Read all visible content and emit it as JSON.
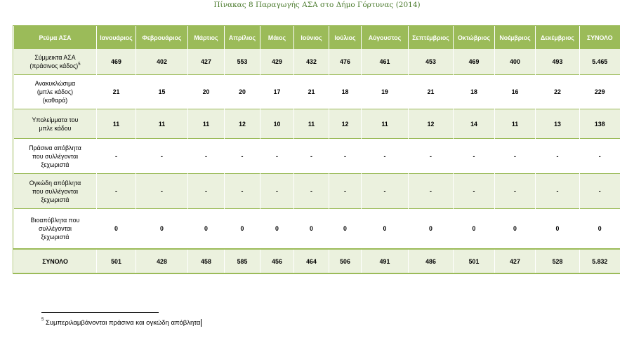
{
  "title": "Πίνακας 8 Παραγωγής ΑΣΑ στο Δήμο Γόρτυνας (2014)",
  "columns": [
    "Ρεύμα ΑΣΑ",
    "Ιανουάριος",
    "Φεβρουάριος",
    "Μάρτιος",
    "Απρίλιος",
    "Μάιος",
    "Ιούνιος",
    "Ιούλιος",
    "Αύγουστος",
    "Σεπτέμβριος",
    "Οκτώβριος",
    "Νοέμβριος",
    "Δεκέμβριος",
    "ΣΥΝΟΛΟ"
  ],
  "rows": [
    {
      "label_lines": [
        "Σύμμεικτα ΑΣΑ",
        "(πράσινος κάδος)"
      ],
      "footnote_ref": "5",
      "values": [
        "469",
        "402",
        "427",
        "553",
        "429",
        "432",
        "476",
        "461",
        "453",
        "469",
        "400",
        "493",
        "5.465"
      ]
    },
    {
      "label_lines": [
        "Ανακυκλώσιμα",
        "(μπλε κάδος)",
        "(καθαρά)"
      ],
      "footnote_ref": "",
      "values": [
        "21",
        "15",
        "20",
        "20",
        "17",
        "21",
        "18",
        "19",
        "21",
        "18",
        "16",
        "22",
        "229"
      ]
    },
    {
      "label_lines": [
        "Υπολείμματα του",
        "μπλε κάδου"
      ],
      "footnote_ref": "",
      "values": [
        "11",
        "11",
        "11",
        "12",
        "10",
        "11",
        "12",
        "11",
        "12",
        "14",
        "11",
        "13",
        "138"
      ]
    },
    {
      "label_lines": [
        "Πράσινα απόβλητα",
        "που συλλέγονται",
        "ξεχωριστά"
      ],
      "footnote_ref": "",
      "values": [
        "-",
        "-",
        "-",
        "-",
        "-",
        "-",
        "-",
        "-",
        "-",
        "-",
        "-",
        "-",
        "-"
      ]
    },
    {
      "label_lines": [
        "Ογκώδη απόβλητα",
        "που συλλέγονται",
        "ξεχωριστά"
      ],
      "footnote_ref": "",
      "values": [
        "-",
        "-",
        "-",
        "-",
        "-",
        "-",
        "-",
        "-",
        "-",
        "-",
        "-",
        "-",
        "-"
      ]
    },
    {
      "label_lines": [
        "Βιοαπόβλητα που",
        "συλλέγονται",
        "ξεχωριστά"
      ],
      "footnote_ref": "",
      "values": [
        "0",
        "0",
        "0",
        "0",
        "0",
        "0",
        "0",
        "0",
        "0",
        "0",
        "0",
        "0",
        "0"
      ]
    }
  ],
  "total_row": {
    "label": "ΣΥΝΟΛΟ",
    "values": [
      "501",
      "428",
      "458",
      "585",
      "456",
      "464",
      "506",
      "491",
      "486",
      "501",
      "427",
      "528",
      "5.832"
    ]
  },
  "footnote": {
    "marker": "5",
    "text": "Συμπεριλαμβάνονται πράσινα και ογκώδη απόβλητα"
  },
  "colors": {
    "header_bg": "#9bbb59",
    "shaded_row_bg": "#ebf1de",
    "title_color": "#4a7a2c"
  }
}
